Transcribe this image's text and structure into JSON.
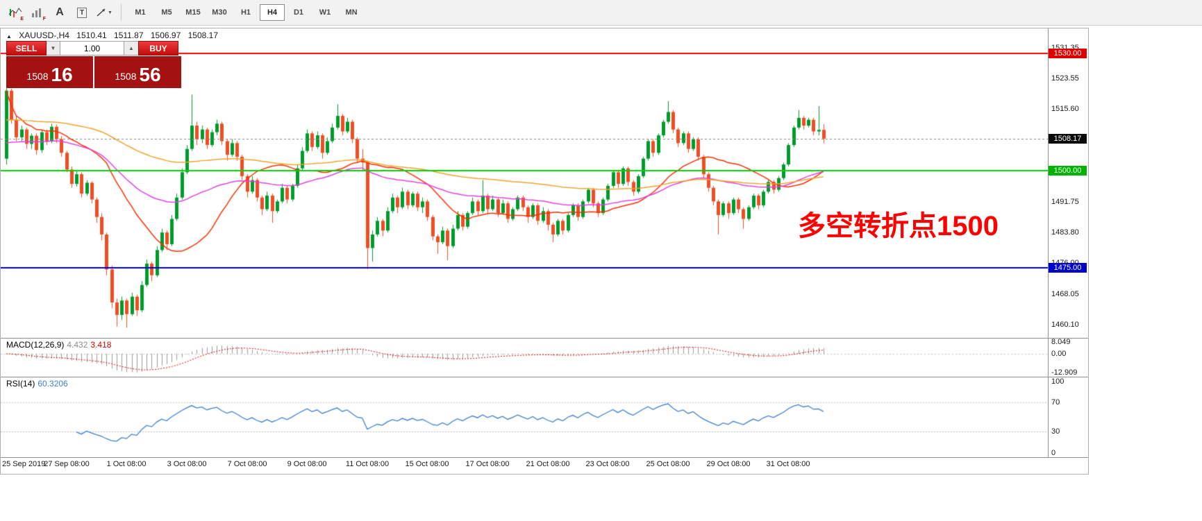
{
  "app": {
    "toolbar": {
      "icons": [
        {
          "badge": "E"
        },
        {
          "badge": "F"
        },
        {
          "glyph": "A"
        },
        {
          "glyph": "T"
        },
        {
          "caret": "▼"
        }
      ],
      "timeframes": [
        "M1",
        "M5",
        "M15",
        "M30",
        "H1",
        "H4",
        "D1",
        "W1",
        "MN"
      ],
      "active_timeframe": "H4"
    }
  },
  "header": {
    "collapse_icon": "▲",
    "symbol": "XAUUSD-,H4",
    "open": "1510.41",
    "high": "1511.87",
    "low": "1506.97",
    "close": "1508.17"
  },
  "trade_panel": {
    "sell_label": "SELL",
    "buy_label": "BUY",
    "volume": "1.00",
    "caret_down": "▼",
    "caret_up": "▲",
    "bid_prefix": "1508",
    "bid_big": "16",
    "ask_prefix": "1508",
    "ask_big": "56"
  },
  "annotation": {
    "text": "多空转折点1500",
    "color": "#ff0000"
  },
  "price_axis": {
    "labels": [
      1531.35,
      1523.55,
      1515.6,
      1491.75,
      1483.8,
      1476.0,
      1468.05,
      1460.1
    ],
    "badges": [
      {
        "value": "1530.00",
        "price": 1530.0,
        "bg": "#e00000"
      },
      {
        "value": "1508.17",
        "price": 1508.17,
        "bg": "#0a0a0a"
      },
      {
        "value": "1500.00",
        "price": 1500.0,
        "bg": "#00b300"
      },
      {
        "value": "1475.00",
        "price": 1475.0,
        "bg": "#0000cd"
      }
    ]
  },
  "macd_panel": {
    "name": "MACD(12,26,9)",
    "main_value": "4.432",
    "signal_value": "3.418",
    "axis_labels": [
      "8.049",
      "0.00",
      "-12.909"
    ],
    "scale_max": 8.049,
    "scale_min": -12.909,
    "params": {
      "fast": 12,
      "slow": 26,
      "signal": 9
    },
    "colors": {
      "histogram": "#9a9a9a",
      "signal": "#e00000",
      "zero_line": "#c0c0c0"
    }
  },
  "rsi_panel": {
    "name": "RSI(14)",
    "value": "60.3206",
    "axis_labels": [
      "100",
      "70",
      "30",
      "0"
    ],
    "period": 14,
    "levels": [
      70,
      30
    ],
    "colors": {
      "line": "#3b7fd4",
      "level_line": "#bbbbbb"
    }
  },
  "chart_data": {
    "type": "candlestick",
    "symbol": "XAUUSD-",
    "timeframe": "H4",
    "y_range": [
      1456.9,
      1536.5
    ],
    "current_price": 1508.17,
    "hlines": [
      {
        "price": 1530.0,
        "color": "#f00000"
      },
      {
        "price": 1500.0,
        "color": "#00d200"
      },
      {
        "price": 1475.0,
        "color": "#0000cd"
      }
    ],
    "colors": {
      "up": "#009b2d",
      "down": "#ee4e24",
      "current_price_line": "#8a8a8a"
    },
    "moving_averages": [
      {
        "type": "sma",
        "period": 21,
        "color": "#ff2d00"
      },
      {
        "type": "ema",
        "period": 55,
        "seed": 1507,
        "color": "#e040e0"
      },
      {
        "type": "ema",
        "period": 120,
        "seed": 1513,
        "color": "#efa32a"
      }
    ],
    "layout": {
      "first_bar_x": 8,
      "bar_spacing": 7.22,
      "body_width": 5
    },
    "time_labels": [
      {
        "bar": 0,
        "text": "25 Sep 2019"
      },
      {
        "bar": 12,
        "text": "27 Sep 08:00"
      },
      {
        "bar": 24,
        "text": "1 Oct 08:00"
      },
      {
        "bar": 36,
        "text": "3 Oct 08:00"
      },
      {
        "bar": 48,
        "text": "7 Oct 08:00"
      },
      {
        "bar": 60,
        "text": "9 Oct 08:00"
      },
      {
        "bar": 72,
        "text": "11 Oct 08:00"
      },
      {
        "bar": 84,
        "text": "15 Oct 08:00"
      },
      {
        "bar": 96,
        "text": "17 Oct 08:00"
      },
      {
        "bar": 108,
        "text": "21 Oct 08:00"
      },
      {
        "bar": 120,
        "text": "23 Oct 08:00"
      },
      {
        "bar": 132,
        "text": "25 Oct 08:00"
      },
      {
        "bar": 144,
        "text": "29 Oct 08:00"
      },
      {
        "bar": 156,
        "text": "31 Oct 08:00"
      }
    ],
    "ohlc": [
      [
        1503.0,
        1521.5,
        1501.5,
        1520.5
      ],
      [
        1520.5,
        1521.0,
        1512.0,
        1513.0
      ],
      [
        1513.0,
        1514.0,
        1507.5,
        1508.5
      ],
      [
        1508.5,
        1511.5,
        1507.5,
        1510.5
      ],
      [
        1510.5,
        1511.0,
        1505.5,
        1506.8
      ],
      [
        1506.8,
        1509.5,
        1505.5,
        1508.9
      ],
      [
        1508.9,
        1509.5,
        1504.0,
        1505.2
      ],
      [
        1505.2,
        1510.5,
        1504.5,
        1509.8
      ],
      [
        1509.8,
        1510.5,
        1506.5,
        1507.5
      ],
      [
        1507.5,
        1512.0,
        1507.0,
        1511.2
      ],
      [
        1511.2,
        1511.8,
        1507.0,
        1508.0
      ],
      [
        1508.0,
        1508.8,
        1503.5,
        1504.5
      ],
      [
        1504.5,
        1505.0,
        1499.5,
        1500.2
      ],
      [
        1500.2,
        1501.0,
        1495.5,
        1496.5
      ],
      [
        1496.5,
        1499.8,
        1495.8,
        1499.0
      ],
      [
        1499.0,
        1499.5,
        1493.0,
        1494.0
      ],
      [
        1494.0,
        1497.5,
        1493.5,
        1496.8
      ],
      [
        1496.8,
        1497.2,
        1491.5,
        1492.5
      ],
      [
        1492.5,
        1493.0,
        1486.5,
        1488.0
      ],
      [
        1488.0,
        1489.0,
        1482.0,
        1483.5
      ],
      [
        1483.5,
        1484.0,
        1473.0,
        1474.5
      ],
      [
        1474.5,
        1475.5,
        1464.5,
        1466.0
      ],
      [
        1466.0,
        1467.0,
        1459.8,
        1462.8
      ],
      [
        1462.8,
        1467.5,
        1461.5,
        1466.5
      ],
      [
        1466.5,
        1467.0,
        1459.5,
        1463.0
      ],
      [
        1463.0,
        1468.5,
        1462.5,
        1467.5
      ],
      [
        1467.5,
        1468.0,
        1462.5,
        1464.0
      ],
      [
        1464.0,
        1471.5,
        1463.5,
        1470.5
      ],
      [
        1470.5,
        1477.0,
        1470.0,
        1476.0
      ],
      [
        1476.0,
        1476.5,
        1471.5,
        1473.0
      ],
      [
        1473.0,
        1480.5,
        1472.5,
        1479.5
      ],
      [
        1479.5,
        1485.0,
        1479.0,
        1484.0
      ],
      [
        1484.0,
        1484.5,
        1479.5,
        1481.0
      ],
      [
        1481.0,
        1488.5,
        1480.5,
        1487.5
      ],
      [
        1487.5,
        1494.0,
        1487.0,
        1493.0
      ],
      [
        1493.0,
        1500.5,
        1492.5,
        1499.5
      ],
      [
        1499.5,
        1506.5,
        1499.0,
        1505.5
      ],
      [
        1505.5,
        1519.5,
        1505.0,
        1511.5
      ],
      [
        1511.5,
        1512.5,
        1506.5,
        1508.0
      ],
      [
        1508.0,
        1511.5,
        1507.0,
        1510.5
      ],
      [
        1510.5,
        1511.0,
        1505.5,
        1506.5
      ],
      [
        1506.5,
        1510.5,
        1506.0,
        1509.8
      ],
      [
        1509.8,
        1513.0,
        1509.0,
        1512.0
      ],
      [
        1512.0,
        1512.5,
        1506.5,
        1507.5
      ],
      [
        1507.5,
        1508.0,
        1502.5,
        1504.0
      ],
      [
        1504.0,
        1508.0,
        1503.5,
        1507.0
      ],
      [
        1507.0,
        1507.5,
        1502.5,
        1503.5
      ],
      [
        1503.5,
        1504.0,
        1497.5,
        1498.5
      ],
      [
        1498.5,
        1499.0,
        1493.0,
        1494.5
      ],
      [
        1494.5,
        1498.5,
        1494.0,
        1497.5
      ],
      [
        1497.5,
        1498.0,
        1492.0,
        1493.0
      ],
      [
        1493.0,
        1493.5,
        1488.5,
        1490.0
      ],
      [
        1490.0,
        1494.5,
        1489.5,
        1493.5
      ],
      [
        1493.5,
        1494.0,
        1486.5,
        1489.5
      ],
      [
        1489.5,
        1492.5,
        1489.0,
        1492.0
      ],
      [
        1492.0,
        1496.5,
        1491.5,
        1495.5
      ],
      [
        1495.5,
        1496.0,
        1491.5,
        1492.5
      ],
      [
        1492.5,
        1496.5,
        1492.0,
        1496.0
      ],
      [
        1496.0,
        1501.5,
        1495.5,
        1500.5
      ],
      [
        1500.5,
        1506.0,
        1500.0,
        1505.0
      ],
      [
        1505.0,
        1510.5,
        1504.5,
        1509.5
      ],
      [
        1509.5,
        1510.0,
        1505.0,
        1506.0
      ],
      [
        1506.0,
        1510.0,
        1505.5,
        1509.0
      ],
      [
        1509.0,
        1509.5,
        1503.0,
        1504.5
      ],
      [
        1504.5,
        1508.5,
        1504.0,
        1507.5
      ],
      [
        1507.5,
        1512.0,
        1507.0,
        1511.0
      ],
      [
        1511.0,
        1517.0,
        1510.5,
        1514.0
      ],
      [
        1514.0,
        1514.5,
        1509.0,
        1510.0
      ],
      [
        1510.0,
        1513.5,
        1509.5,
        1512.5
      ],
      [
        1512.5,
        1513.0,
        1507.0,
        1508.0
      ],
      [
        1508.0,
        1508.5,
        1502.0,
        1503.0
      ],
      [
        1503.0,
        1505.5,
        1500.0,
        1502.0
      ],
      [
        1502.0,
        1502.5,
        1474.6,
        1480.0
      ],
      [
        1480.0,
        1484.5,
        1476.5,
        1483.5
      ],
      [
        1483.5,
        1488.0,
        1483.0,
        1487.0
      ],
      [
        1487.0,
        1487.5,
        1483.0,
        1484.5
      ],
      [
        1484.5,
        1490.5,
        1484.0,
        1489.5
      ],
      [
        1489.5,
        1494.0,
        1489.0,
        1493.0
      ],
      [
        1493.0,
        1493.5,
        1489.0,
        1490.5
      ],
      [
        1490.5,
        1495.5,
        1490.0,
        1494.5
      ],
      [
        1494.5,
        1495.0,
        1490.0,
        1491.0
      ],
      [
        1491.0,
        1494.5,
        1490.5,
        1494.0
      ],
      [
        1494.0,
        1494.5,
        1489.5,
        1490.5
      ],
      [
        1490.5,
        1493.0,
        1489.0,
        1492.0
      ],
      [
        1492.0,
        1492.5,
        1487.0,
        1488.0
      ],
      [
        1488.0,
        1488.5,
        1482.0,
        1483.0
      ],
      [
        1483.0,
        1483.5,
        1478.5,
        1481.5
      ],
      [
        1481.5,
        1485.5,
        1481.0,
        1484.5
      ],
      [
        1484.5,
        1485.0,
        1476.9,
        1480.5
      ],
      [
        1480.5,
        1486.0,
        1480.0,
        1485.0
      ],
      [
        1485.0,
        1489.5,
        1484.5,
        1488.5
      ],
      [
        1488.5,
        1489.0,
        1484.5,
        1485.5
      ],
      [
        1485.5,
        1489.5,
        1485.0,
        1489.0
      ],
      [
        1489.0,
        1493.0,
        1488.5,
        1492.0
      ],
      [
        1492.0,
        1492.5,
        1488.5,
        1489.5
      ],
      [
        1489.5,
        1497.5,
        1489.0,
        1493.5
      ],
      [
        1493.5,
        1494.0,
        1489.0,
        1490.0
      ],
      [
        1490.0,
        1493.5,
        1489.5,
        1492.5
      ],
      [
        1492.5,
        1493.0,
        1488.0,
        1489.0
      ],
      [
        1489.0,
        1492.5,
        1488.5,
        1491.5
      ],
      [
        1491.5,
        1492.0,
        1486.5,
        1487.5
      ],
      [
        1487.5,
        1490.5,
        1487.0,
        1490.0
      ],
      [
        1490.0,
        1493.5,
        1489.5,
        1493.0
      ],
      [
        1493.0,
        1493.5,
        1489.5,
        1490.5
      ],
      [
        1490.5,
        1491.0,
        1486.5,
        1488.0
      ],
      [
        1488.0,
        1491.5,
        1487.5,
        1491.0
      ],
      [
        1491.0,
        1491.5,
        1486.0,
        1487.0
      ],
      [
        1487.0,
        1490.5,
        1486.5,
        1489.5
      ],
      [
        1489.5,
        1490.0,
        1484.5,
        1486.0
      ],
      [
        1486.0,
        1486.5,
        1481.5,
        1483.5
      ],
      [
        1483.5,
        1487.5,
        1483.0,
        1487.0
      ],
      [
        1487.0,
        1487.5,
        1483.5,
        1484.5
      ],
      [
        1484.5,
        1489.0,
        1484.0,
        1488.5
      ],
      [
        1488.5,
        1491.5,
        1488.0,
        1491.0
      ],
      [
        1491.0,
        1491.5,
        1487.0,
        1488.0
      ],
      [
        1488.0,
        1492.5,
        1487.5,
        1492.0
      ],
      [
        1492.0,
        1495.5,
        1491.5,
        1495.0
      ],
      [
        1495.0,
        1495.5,
        1490.5,
        1491.5
      ],
      [
        1491.5,
        1492.0,
        1488.0,
        1489.0
      ],
      [
        1489.0,
        1493.0,
        1488.5,
        1492.5
      ],
      [
        1492.5,
        1496.5,
        1492.0,
        1496.0
      ],
      [
        1496.0,
        1500.0,
        1495.5,
        1499.5
      ],
      [
        1499.5,
        1500.0,
        1495.5,
        1496.5
      ],
      [
        1496.5,
        1501.0,
        1496.0,
        1500.5
      ],
      [
        1500.5,
        1501.0,
        1496.0,
        1497.0
      ],
      [
        1497.0,
        1497.5,
        1493.5,
        1494.5
      ],
      [
        1494.5,
        1499.0,
        1494.0,
        1498.5
      ],
      [
        1498.5,
        1503.5,
        1498.0,
        1503.0
      ],
      [
        1503.0,
        1508.0,
        1502.5,
        1507.5
      ],
      [
        1507.5,
        1508.0,
        1503.5,
        1504.5
      ],
      [
        1504.5,
        1509.5,
        1504.0,
        1509.0
      ],
      [
        1509.0,
        1513.0,
        1508.5,
        1512.5
      ],
      [
        1512.5,
        1517.8,
        1512.0,
        1515.0
      ],
      [
        1515.0,
        1515.5,
        1509.5,
        1510.5
      ],
      [
        1510.5,
        1511.0,
        1506.0,
        1507.0
      ],
      [
        1507.0,
        1510.0,
        1506.5,
        1509.5
      ],
      [
        1509.5,
        1510.0,
        1504.5,
        1505.5
      ],
      [
        1505.5,
        1508.5,
        1505.0,
        1508.0
      ],
      [
        1508.0,
        1508.5,
        1502.5,
        1503.5
      ],
      [
        1503.5,
        1504.0,
        1498.0,
        1499.0
      ],
      [
        1499.0,
        1499.5,
        1494.5,
        1495.5
      ],
      [
        1495.5,
        1496.0,
        1491.0,
        1492.0
      ],
      [
        1492.0,
        1492.5,
        1483.5,
        1488.5
      ],
      [
        1488.5,
        1492.0,
        1488.0,
        1491.5
      ],
      [
        1491.5,
        1492.0,
        1487.5,
        1489.0
      ],
      [
        1489.0,
        1493.0,
        1488.5,
        1492.5
      ],
      [
        1492.5,
        1493.0,
        1489.0,
        1490.0
      ],
      [
        1490.0,
        1490.5,
        1485.0,
        1487.5
      ],
      [
        1487.5,
        1491.0,
        1487.0,
        1490.5
      ],
      [
        1490.5,
        1494.0,
        1490.0,
        1493.5
      ],
      [
        1493.5,
        1494.0,
        1490.0,
        1491.0
      ],
      [
        1491.0,
        1495.0,
        1490.5,
        1494.5
      ],
      [
        1494.5,
        1497.5,
        1494.0,
        1497.0
      ],
      [
        1497.0,
        1497.5,
        1494.0,
        1495.0
      ],
      [
        1495.0,
        1498.5,
        1494.5,
        1498.0
      ],
      [
        1498.0,
        1502.0,
        1497.5,
        1501.5
      ],
      [
        1501.5,
        1507.0,
        1501.0,
        1506.5
      ],
      [
        1506.5,
        1511.5,
        1506.0,
        1511.0
      ],
      [
        1511.0,
        1515.5,
        1510.5,
        1513.5
      ],
      [
        1513.5,
        1514.0,
        1510.5,
        1511.5
      ],
      [
        1511.5,
        1513.5,
        1511.0,
        1513.0
      ],
      [
        1513.0,
        1513.5,
        1509.0,
        1510.0
      ],
      [
        1510.0,
        1516.5,
        1509.0,
        1510.4
      ],
      [
        1510.41,
        1511.87,
        1506.97,
        1508.17
      ]
    ]
  }
}
